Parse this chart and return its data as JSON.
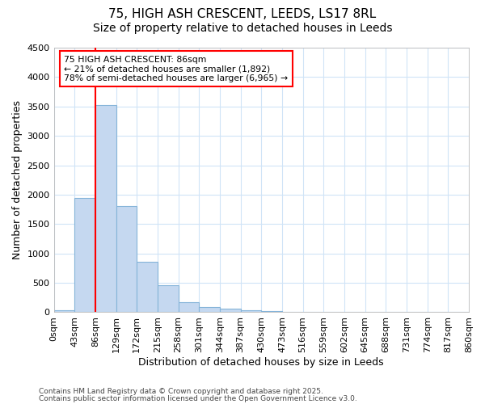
{
  "title_line1": "75, HIGH ASH CRESCENT, LEEDS, LS17 8RL",
  "title_line2": "Size of property relative to detached houses in Leeds",
  "xlabel": "Distribution of detached houses by size in Leeds",
  "ylabel": "Number of detached properties",
  "bar_values": [
    30,
    1940,
    3520,
    1800,
    860,
    460,
    170,
    95,
    55,
    30,
    20,
    5,
    0,
    0,
    0,
    0,
    0,
    0,
    0,
    0
  ],
  "bin_labels": [
    "0sqm",
    "43sqm",
    "86sqm",
    "129sqm",
    "172sqm",
    "215sqm",
    "258sqm",
    "301sqm",
    "344sqm",
    "387sqm",
    "430sqm",
    "473sqm",
    "516sqm",
    "559sqm",
    "602sqm",
    "645sqm",
    "688sqm",
    "731sqm",
    "774sqm",
    "817sqm",
    "860sqm"
  ],
  "bar_color": "#c5d8f0",
  "bar_edge_color": "#85b4d9",
  "red_line_x": 2,
  "ylim": [
    0,
    4500
  ],
  "yticks": [
    0,
    500,
    1000,
    1500,
    2000,
    2500,
    3000,
    3500,
    4000,
    4500
  ],
  "annotation_line1": "75 HIGH ASH CRESCENT: 86sqm",
  "annotation_line2": "← 21% of detached houses are smaller (1,892)",
  "annotation_line3": "78% of semi-detached houses are larger (6,965) →",
  "footer_line1": "Contains HM Land Registry data © Crown copyright and database right 2025.",
  "footer_line2": "Contains public sector information licensed under the Open Government Licence v3.0.",
  "background_color": "#ffffff",
  "grid_color": "#d0e4f7",
  "title_fontsize": 11,
  "subtitle_fontsize": 10,
  "axis_label_fontsize": 9,
  "tick_fontsize": 8
}
